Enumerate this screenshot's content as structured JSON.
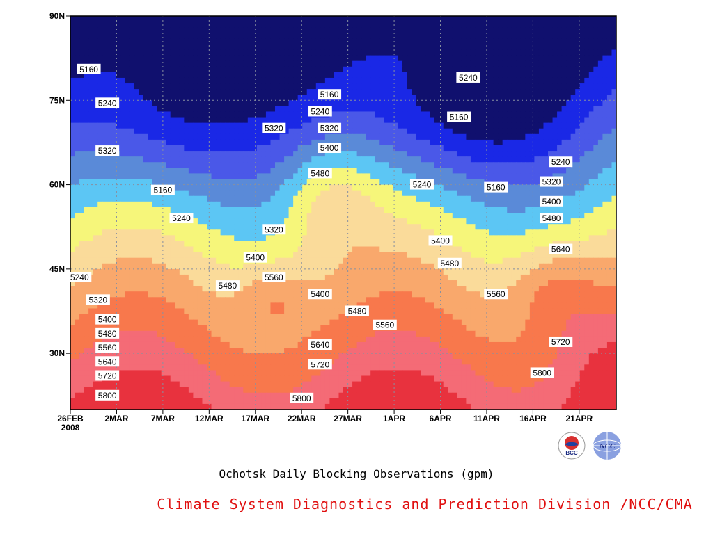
{
  "caption": "Ochotsk Daily Blocking Observations (gpm)",
  "credit": "Climate System Diagnostics and Prediction Division /NCC/CMA",
  "logos": {
    "left_logo_text": "BCC",
    "right_logo_text": "NCC"
  },
  "chart_data": {
    "type": "heatmap",
    "subtype": "filled-contour (time-latitude)",
    "units": "gpm",
    "x_tick_labels": [
      "26FEB",
      "2MAR",
      "7MAR",
      "12MAR",
      "17MAR",
      "22MAR",
      "27MAR",
      "1APR",
      "6APR",
      "11APR",
      "16APR",
      "21APR"
    ],
    "x_year_label": "2008",
    "x_range": [
      "2008-02-26",
      "2008-04-25"
    ],
    "y_tick_labels": [
      "30N",
      "45N",
      "60N",
      "75N",
      "90N"
    ],
    "y_range": [
      20,
      90
    ],
    "grid": "dotted",
    "contour_levels": [
      5160,
      5240,
      5320,
      5400,
      5480,
      5560,
      5640,
      5720,
      5800,
      5880
    ],
    "fill_colors": [
      "#10106e",
      "#1a28e6",
      "#4a58e8",
      "#5a8ad8",
      "#5cc6f4",
      "#f6f67a",
      "#fadb9a",
      "#f9a86c",
      "#f8784c",
      "#f46b76",
      "#e8323e"
    ],
    "contour_labels": [
      {
        "date": "2008-02-28",
        "lat": 80.5,
        "text": "5160"
      },
      {
        "date": "2008-03-01",
        "lat": 74.5,
        "text": "5240"
      },
      {
        "date": "2008-03-01",
        "lat": 66,
        "text": "5320"
      },
      {
        "date": "2008-02-27",
        "lat": 43.5,
        "text": "5240"
      },
      {
        "date": "2008-02-29",
        "lat": 39.5,
        "text": "5320"
      },
      {
        "date": "2008-03-01",
        "lat": 36,
        "text": "5400"
      },
      {
        "date": "2008-03-01",
        "lat": 33.5,
        "text": "5480"
      },
      {
        "date": "2008-03-01",
        "lat": 31,
        "text": "5560"
      },
      {
        "date": "2008-03-01",
        "lat": 28.5,
        "text": "5640"
      },
      {
        "date": "2008-03-01",
        "lat": 26,
        "text": "5720"
      },
      {
        "date": "2008-03-01",
        "lat": 22.5,
        "text": "5800"
      },
      {
        "date": "2008-03-07",
        "lat": 59,
        "text": "5160"
      },
      {
        "date": "2008-03-09",
        "lat": 54,
        "text": "5240"
      },
      {
        "date": "2008-03-19",
        "lat": 52,
        "text": "5320"
      },
      {
        "date": "2008-03-17",
        "lat": 47,
        "text": "5400"
      },
      {
        "date": "2008-03-14",
        "lat": 42,
        "text": "5480"
      },
      {
        "date": "2008-03-19",
        "lat": 43.5,
        "text": "5560"
      },
      {
        "date": "2008-03-19",
        "lat": 70,
        "text": "5320"
      },
      {
        "date": "2008-03-25",
        "lat": 76,
        "text": "5160"
      },
      {
        "date": "2008-03-24",
        "lat": 73,
        "text": "5240"
      },
      {
        "date": "2008-03-25",
        "lat": 70,
        "text": "5320"
      },
      {
        "date": "2008-03-25",
        "lat": 66.5,
        "text": "5400"
      },
      {
        "date": "2008-03-24",
        "lat": 62,
        "text": "5480"
      },
      {
        "date": "2008-03-24",
        "lat": 40.5,
        "text": "5400"
      },
      {
        "date": "2008-03-28",
        "lat": 37.5,
        "text": "5480"
      },
      {
        "date": "2008-03-24",
        "lat": 31.5,
        "text": "5640"
      },
      {
        "date": "2008-03-24",
        "lat": 28,
        "text": "5720"
      },
      {
        "date": "2008-03-22",
        "lat": 22,
        "text": "5800"
      },
      {
        "date": "2008-03-31",
        "lat": 35,
        "text": "5560"
      },
      {
        "date": "2008-04-04",
        "lat": 60,
        "text": "5240"
      },
      {
        "date": "2008-04-06",
        "lat": 50,
        "text": "5400"
      },
      {
        "date": "2008-04-07",
        "lat": 46,
        "text": "5480"
      },
      {
        "date": "2008-04-08",
        "lat": 72,
        "text": "5160"
      },
      {
        "date": "2008-04-09",
        "lat": 79,
        "text": "5240"
      },
      {
        "date": "2008-04-12",
        "lat": 59.5,
        "text": "5160"
      },
      {
        "date": "2008-04-12",
        "lat": 40.5,
        "text": "5560"
      },
      {
        "date": "2008-04-17",
        "lat": 26.5,
        "text": "5800"
      },
      {
        "date": "2008-04-19",
        "lat": 32,
        "text": "5720"
      },
      {
        "date": "2008-04-19",
        "lat": 48.5,
        "text": "5640"
      },
      {
        "date": "2008-04-18",
        "lat": 54,
        "text": "5480"
      },
      {
        "date": "2008-04-18",
        "lat": 57,
        "text": "5400"
      },
      {
        "date": "2008-04-18",
        "lat": 60.5,
        "text": "5320"
      },
      {
        "date": "2008-04-19",
        "lat": 64,
        "text": "5240"
      }
    ]
  }
}
